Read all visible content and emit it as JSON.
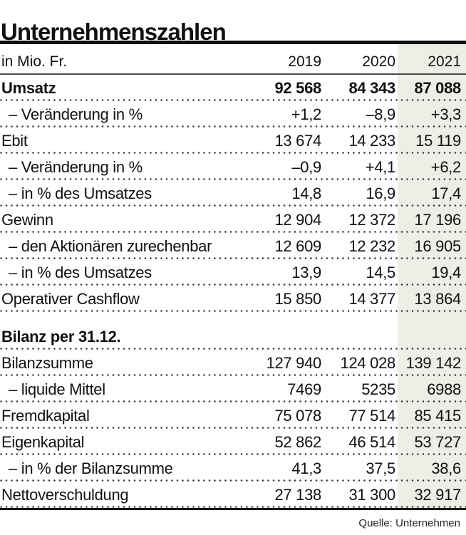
{
  "title": "Unternehmenszahlen",
  "source": "Quelle: Unternehmen",
  "colors": {
    "highlight_column_background": "#efeee6",
    "text": "#111111",
    "rule": "#0d0d0d"
  },
  "chart_data": {
    "type": "table",
    "title": "Unternehmenszahlen",
    "unit_label": "in Mio. Fr.",
    "columns": [
      "2019",
      "2020",
      "2021"
    ],
    "highlighted_column": "2021",
    "source": "Quelle: Unternehmen",
    "sections": [
      {
        "header": null,
        "rows": [
          {
            "label": "Umsatz",
            "bold": true,
            "indent": false,
            "values": [
              92568,
              84343,
              87088
            ],
            "display": [
              "92 568",
              "84 343",
              "87 088"
            ]
          },
          {
            "label": "– Veränderung in %",
            "bold": false,
            "indent": true,
            "values": [
              1.2,
              -8.9,
              3.3
            ],
            "display": [
              "+1,2",
              "–8,9",
              "+3,3"
            ]
          },
          {
            "label": "Ebit",
            "bold": false,
            "indent": false,
            "values": [
              13674,
              14233,
              15119
            ],
            "display": [
              "13 674",
              "14 233",
              "15 119"
            ]
          },
          {
            "label": "– Veränderung in %",
            "bold": false,
            "indent": true,
            "values": [
              -0.9,
              4.1,
              6.2
            ],
            "display": [
              "–0,9",
              "+4,1",
              "+6,2"
            ]
          },
          {
            "label": "– in % des Umsatzes",
            "bold": false,
            "indent": true,
            "values": [
              14.8,
              16.9,
              17.4
            ],
            "display": [
              "14,8",
              "16,9",
              "17,4"
            ]
          },
          {
            "label": "Gewinn",
            "bold": false,
            "indent": false,
            "values": [
              12904,
              12372,
              17196
            ],
            "display": [
              "12 904",
              "12 372",
              "17 196"
            ]
          },
          {
            "label": "– den Aktionären zurechenbar",
            "bold": false,
            "indent": true,
            "values": [
              12609,
              12232,
              16905
            ],
            "display": [
              "12 609",
              "12 232",
              "16 905"
            ]
          },
          {
            "label": "– in % des Umsatzes",
            "bold": false,
            "indent": true,
            "values": [
              13.9,
              14.5,
              19.4
            ],
            "display": [
              "13,9",
              "14,5",
              "19,4"
            ]
          },
          {
            "label": "Operativer Cashflow",
            "bold": false,
            "indent": false,
            "values": [
              15850,
              14377,
              13864
            ],
            "display": [
              "15 850",
              "14 377",
              "13 864"
            ]
          }
        ]
      },
      {
        "header": "Bilanz per 31.12.",
        "rows": [
          {
            "label": "Bilanzsumme",
            "bold": false,
            "indent": false,
            "values": [
              127940,
              124028,
              139142
            ],
            "display": [
              "127 940",
              "124 028",
              "139 142"
            ]
          },
          {
            "label": "– liquide Mittel",
            "bold": false,
            "indent": true,
            "values": [
              7469,
              5235,
              6988
            ],
            "display": [
              "7469",
              "5235",
              "6988"
            ]
          },
          {
            "label": "Fremdkapital",
            "bold": false,
            "indent": false,
            "values": [
              75078,
              77514,
              85415
            ],
            "display": [
              "75 078",
              "77 514",
              "85 415"
            ]
          },
          {
            "label": "Eigenkapital",
            "bold": false,
            "indent": false,
            "values": [
              52862,
              46514,
              53727
            ],
            "display": [
              "52 862",
              "46 514",
              "53 727"
            ]
          },
          {
            "label": "– in % der Bilanzsumme",
            "bold": false,
            "indent": true,
            "values": [
              41.3,
              37.5,
              38.6
            ],
            "display": [
              "41,3",
              "37,5",
              "38,6"
            ]
          },
          {
            "label": "Nettoverschuldung",
            "bold": false,
            "indent": false,
            "values": [
              27138,
              31300,
              32917
            ],
            "display": [
              "27 138",
              "31 300",
              "32 917"
            ]
          }
        ]
      }
    ]
  }
}
